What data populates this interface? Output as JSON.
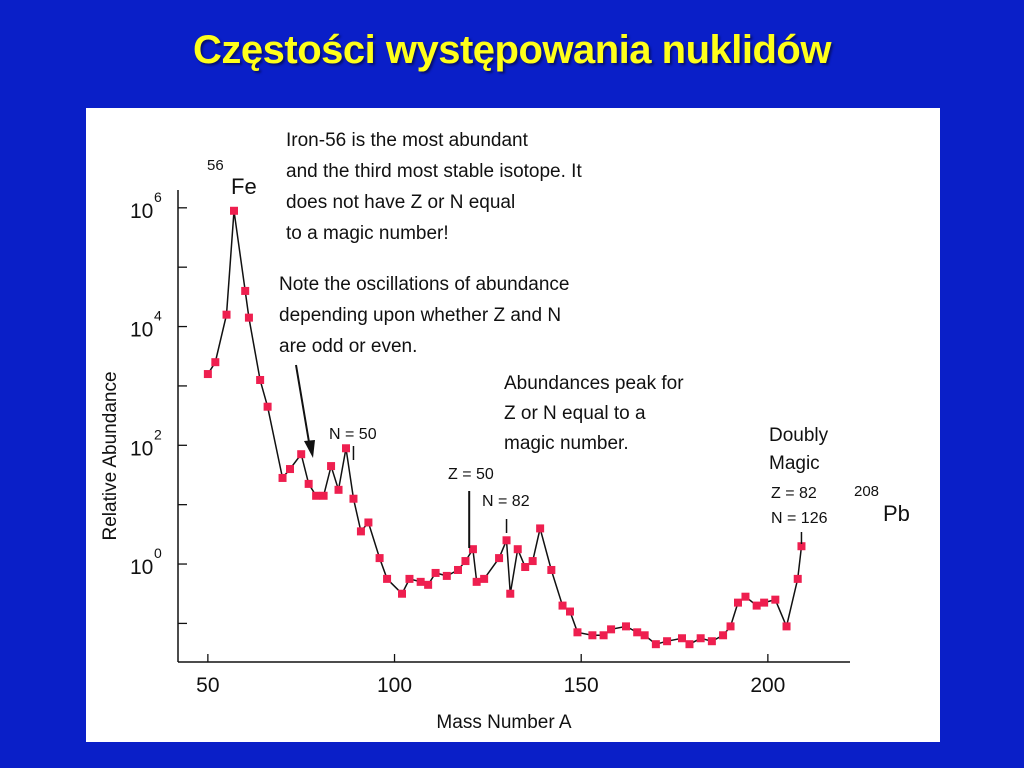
{
  "slide_title": "Częstości występowania nuklidów",
  "chart_data": {
    "type": "line",
    "title": "",
    "xlabel": "Mass Number A",
    "ylabel": "Relative Abundance",
    "xlim": [
      42,
      222
    ],
    "ylim_log10": [
      -1.65,
      6.3
    ],
    "y_scale": "log",
    "grid": false,
    "x_ticks": [
      50,
      100,
      150,
      200
    ],
    "x_tick_labels": [
      "50",
      "100",
      "150",
      "200"
    ],
    "y_major_ticks": [
      {
        "base": "10",
        "exp": "6",
        "log10": 6
      },
      {
        "base": "10",
        "exp": "4",
        "log10": 4
      },
      {
        "base": "10",
        "exp": "2",
        "log10": 2
      },
      {
        "base": "10",
        "exp": "0",
        "log10": 0
      }
    ],
    "y_minor_ticks_log10": [
      5,
      3,
      1,
      -1
    ],
    "marker_color": "#ee1f4f",
    "line_color": "#111111",
    "series": [
      {
        "x": [
          50,
          52,
          55,
          57,
          60,
          61,
          64,
          66,
          70,
          72,
          75,
          77,
          79,
          81,
          83,
          85,
          87,
          89,
          91,
          93,
          96,
          98,
          102,
          104,
          107,
          109,
          111,
          114,
          117,
          119,
          121,
          122,
          124,
          128,
          130,
          131,
          133,
          135,
          137,
          139,
          142,
          145,
          147,
          149,
          153,
          156,
          158,
          162,
          165,
          167,
          170,
          173,
          177,
          179,
          182,
          185,
          188,
          190,
          192,
          194,
          197,
          199,
          202,
          205,
          208,
          209
        ],
        "log10": [
          3.2,
          3.4,
          4.2,
          5.95,
          4.6,
          4.15,
          3.1,
          2.65,
          1.45,
          1.6,
          1.85,
          1.35,
          1.15,
          1.15,
          1.65,
          1.25,
          1.95,
          1.1,
          0.55,
          0.7,
          0.1,
          -0.25,
          -0.5,
          -0.25,
          -0.3,
          -0.35,
          -0.15,
          -0.2,
          -0.1,
          0.05,
          0.25,
          -0.3,
          -0.25,
          0.1,
          0.4,
          -0.5,
          0.25,
          -0.05,
          0.05,
          0.6,
          -0.1,
          -0.7,
          -0.8,
          -1.15,
          -1.2,
          -1.2,
          -1.1,
          -1.05,
          -1.15,
          -1.2,
          -1.35,
          -1.3,
          -1.25,
          -1.35,
          -1.25,
          -1.3,
          -1.2,
          -1.05,
          -0.65,
          -0.55,
          -0.7,
          -0.65,
          -0.6,
          -1.05,
          -0.25,
          0.3
        ]
      }
    ],
    "labels": {
      "fe_mass": "56",
      "fe_symbol": "Fe",
      "pb_mass": "208",
      "pb_symbol": "Pb",
      "n50": "N = 50",
      "z50": "Z = 50",
      "n82": "N = 82",
      "doubly": "Doubly",
      "magic": "Magic",
      "z82": "Z = 82",
      "n126": "N = 126"
    },
    "annotations": {
      "iron": [
        "Iron-56 is the most abundant",
        "and the third most stable isotope. It",
        "does not have Z or N equal",
        "to a magic number!"
      ],
      "oscillation": [
        "Note the oscillations of abundance",
        "depending upon whether Z and N",
        "are odd or even."
      ],
      "peak": [
        "Abundances peak for",
        "Z or N equal to a",
        "magic number."
      ]
    }
  }
}
